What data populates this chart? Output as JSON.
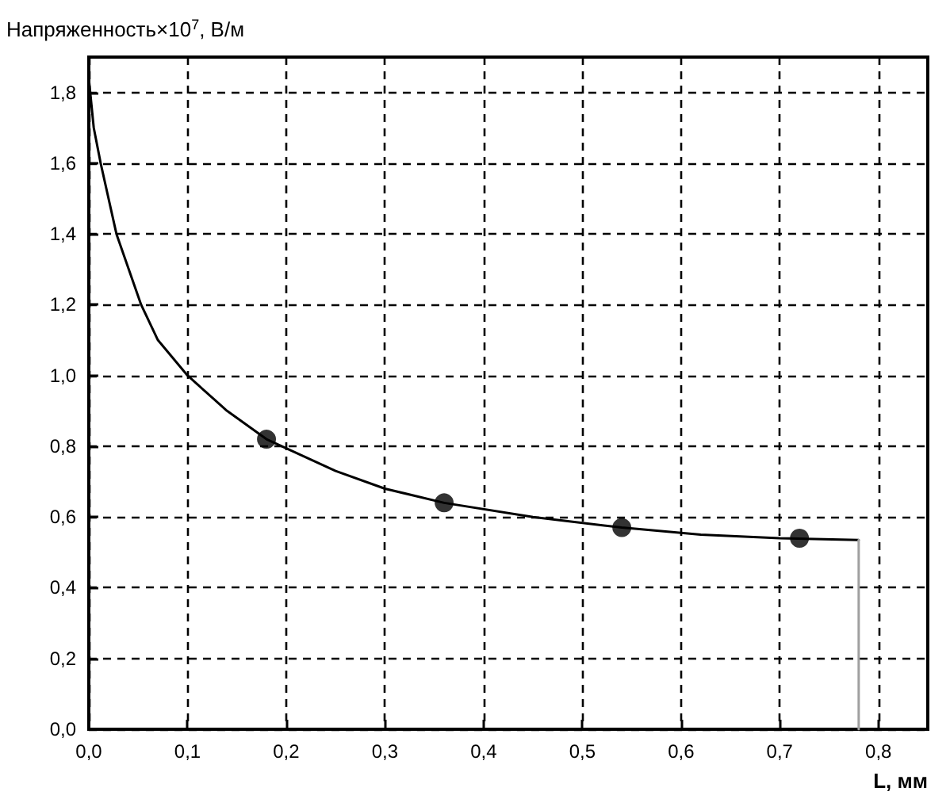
{
  "chart_data": {
    "type": "line",
    "xlabel": "L, мм",
    "ylabel": "Напряженность×10$^{7}$, В/м",
    "xlim": [
      0,
      0.85
    ],
    "ylim": [
      0,
      1.9
    ],
    "xticks": [
      {
        "value": 0,
        "label": "0,0"
      },
      {
        "value": 0.1,
        "label": "0,1"
      },
      {
        "value": 0.2,
        "label": "0,2"
      },
      {
        "value": 0.3,
        "label": "0,3"
      },
      {
        "value": 0.4,
        "label": "0,4"
      },
      {
        "value": 0.5,
        "label": "0,5"
      },
      {
        "value": 0.6,
        "label": "0,6"
      },
      {
        "value": 0.7,
        "label": "0,7"
      },
      {
        "value": 0.8,
        "label": "0,8"
      }
    ],
    "yticks": [
      {
        "value": 0,
        "label": "0,0"
      },
      {
        "value": 0.2,
        "label": "0,2"
      },
      {
        "value": 0.4,
        "label": "0,4"
      },
      {
        "value": 0.6,
        "label": "0,6"
      },
      {
        "value": 0.8,
        "label": "0,8"
      },
      {
        "value": 1.0,
        "label": "1,0"
      },
      {
        "value": 1.2,
        "label": "1,2"
      },
      {
        "value": 1.4,
        "label": "1,4"
      },
      {
        "value": 1.6,
        "label": "1,6"
      },
      {
        "value": 1.8,
        "label": "1,8"
      }
    ],
    "grid": true,
    "series": [
      {
        "color": "#000000",
        "marker": "none",
        "line_style": "solid",
        "x": [
          0,
          0.005,
          0.012,
          0.028,
          0.053,
          0.07,
          0.1,
          0.14,
          0.18,
          0.25,
          0.3,
          0.36,
          0.45,
          0.54,
          0.62,
          0.7,
          0.78
        ],
        "values": [
          1.84,
          1.7,
          1.6,
          1.4,
          1.2,
          1.1,
          1.0,
          0.9,
          0.82,
          0.73,
          0.68,
          0.64,
          0.6,
          0.57,
          0.55,
          0.54,
          0.535
        ]
      },
      {
        "color": "#a0a0a0",
        "marker": "none",
        "line_style": "solid",
        "x": [
          0.78,
          0.78
        ],
        "values": [
          0.535,
          0
        ]
      },
      {
        "type": "scatter",
        "color": "#000000",
        "marker": "circle",
        "x": [
          0.18,
          0.36,
          0.54,
          0.72
        ],
        "values": [
          0.82,
          0.64,
          0.57,
          0.54
        ]
      }
    ]
  }
}
